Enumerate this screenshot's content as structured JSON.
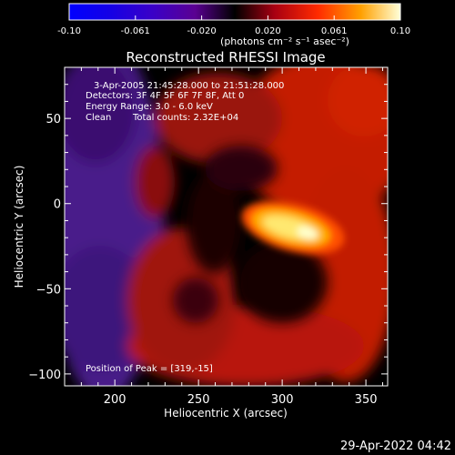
{
  "colorbar": {
    "ticks": [
      "-0.10",
      "-0.061",
      "-0.020",
      "0.020",
      "0.061",
      "0.10"
    ],
    "unit_label": "(photons cm⁻² s⁻¹ asec⁻²)",
    "range": [
      -0.1,
      0.1
    ]
  },
  "chart_data": {
    "type": "heatmap",
    "title": "Reconstructed RHESSI Image",
    "xlabel": "Heliocentric X (arcsec)",
    "ylabel": "Heliocentric Y (arcsec)",
    "xlim": [
      170,
      363
    ],
    "ylim": [
      -107,
      80
    ],
    "x_ticks": [
      "200",
      "250",
      "300",
      "350"
    ],
    "x_tick_values": [
      200,
      250,
      300,
      350
    ],
    "y_ticks": [
      "50",
      "0",
      "−50",
      "−100"
    ],
    "y_tick_values": [
      50,
      0,
      -50,
      -100
    ],
    "peak": [
      319,
      -15
    ],
    "annotations": {
      "time_range": "3-Apr-2005 21:45:28.000 to 21:51:28.000",
      "detectors": "Detectors: 3F 4F 5F 6F 7F 8F, Att 0",
      "energy": "Energy Range: 3.0 - 6.0 keV",
      "clean": "Clean",
      "total_counts": "Total counts: 2.32E+04",
      "peak_position": "Position of Peak = [319,-15]"
    }
  },
  "footer": {
    "timestamp": "29-Apr-2022 04:42"
  }
}
